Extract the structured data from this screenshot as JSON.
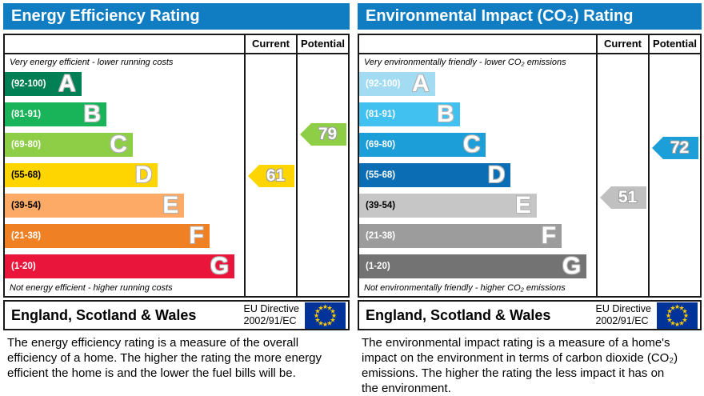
{
  "theme": {
    "header_bg": "#107dc3",
    "border": "#1a1a1a",
    "flag_bg": "#003399",
    "flag_star": "#ffcc00"
  },
  "panels": [
    {
      "title": "Energy Efficiency Rating",
      "columns": {
        "current": "Current",
        "potential": "Potential"
      },
      "top_note": "Very energy efficient - lower running costs",
      "bottom_note": "Not energy efficient - higher running costs",
      "bands": [
        {
          "letter": "A",
          "range": "(92-100)",
          "color": "#008054",
          "label_color": "#ffffff",
          "width_pct": 32
        },
        {
          "letter": "B",
          "range": "(81-91)",
          "color": "#19b459",
          "label_color": "#ffffff",
          "width_pct": 42.5
        },
        {
          "letter": "C",
          "range": "(69-80)",
          "color": "#8dce46",
          "label_color": "#ffffff",
          "width_pct": 53.5
        },
        {
          "letter": "D",
          "range": "(55-68)",
          "color": "#ffd500",
          "label_color": "#000000",
          "width_pct": 64
        },
        {
          "letter": "E",
          "range": "(39-54)",
          "color": "#fcaa65",
          "label_color": "#000000",
          "width_pct": 75
        },
        {
          "letter": "F",
          "range": "(21-38)",
          "color": "#ef8023",
          "label_color": "#ffffff",
          "width_pct": 85.5
        },
        {
          "letter": "G",
          "range": "(1-20)",
          "color": "#e9153b",
          "label_color": "#ffffff",
          "width_pct": 96
        }
      ],
      "current": {
        "value": "61",
        "row": 3,
        "offset_y": 1,
        "color": "#ffd500"
      },
      "potential": {
        "value": "79",
        "row": 2,
        "offset_y": -13,
        "color": "#8dce46"
      },
      "footer": {
        "region": "England, Scotland & Wales",
        "directive_line1": "EU Directive",
        "directive_line2": "2002/91/EC"
      },
      "description": "The energy efficiency rating is a measure of the overall efficiency of a home. The higher the rating the more energy efficient the home is and the lower the fuel bills will be."
    },
    {
      "title": "Environmental Impact (CO₂) Rating",
      "columns": {
        "current": "Current",
        "potential": "Potential"
      },
      "top_note": "Very environmentally friendly - lower CO₂ emissions",
      "bottom_note": "Not environmentally friendly - higher CO₂ emissions",
      "bands": [
        {
          "letter": "A",
          "range": "(92-100)",
          "color": "#a3dbf3",
          "label_color": "#ffffff",
          "width_pct": 32
        },
        {
          "letter": "B",
          "range": "(81-91)",
          "color": "#40c1f0",
          "label_color": "#ffffff",
          "width_pct": 42.5
        },
        {
          "letter": "C",
          "range": "(69-80)",
          "color": "#1c9ed8",
          "label_color": "#ffffff",
          "width_pct": 53.5
        },
        {
          "letter": "D",
          "range": "(55-68)",
          "color": "#0b6eb5",
          "label_color": "#ffffff",
          "width_pct": 64
        },
        {
          "letter": "E",
          "range": "(39-54)",
          "color": "#c6c6c6",
          "label_color": "#000000",
          "width_pct": 75
        },
        {
          "letter": "F",
          "range": "(21-38)",
          "color": "#9c9c9c",
          "label_color": "#ffffff",
          "width_pct": 85.5
        },
        {
          "letter": "G",
          "range": "(1-20)",
          "color": "#737373",
          "label_color": "#ffffff",
          "width_pct": 96
        }
      ],
      "current": {
        "value": "51",
        "row": 4,
        "offset_y": -10,
        "color": "#c0c0c0"
      },
      "potential": {
        "value": "72",
        "row": 2,
        "offset_y": 4,
        "color": "#1c9ed8"
      },
      "footer": {
        "region": "England, Scotland & Wales",
        "directive_line1": "EU Directive",
        "directive_line2": "2002/91/EC"
      },
      "description": "The environmental impact rating is a measure of a home's impact on the environment in terms of carbon dioxide (CO₂) emissions. The higher the rating the less impact it has on the environment."
    }
  ],
  "chart_data": [
    {
      "type": "bar",
      "title": "Energy Efficiency Rating",
      "categories": [
        "A (92-100)",
        "B (81-91)",
        "C (69-80)",
        "D (55-68)",
        "E (39-54)",
        "F (21-38)",
        "G (1-20)"
      ],
      "series": [
        {
          "name": "Current",
          "value": 61,
          "band": "D"
        },
        {
          "name": "Potential",
          "value": 79,
          "band": "C"
        }
      ],
      "scale": [
        1,
        100
      ],
      "annotations": [
        "Very energy efficient - lower running costs",
        "Not energy efficient - higher running costs"
      ]
    },
    {
      "type": "bar",
      "title": "Environmental Impact (CO₂) Rating",
      "categories": [
        "A (92-100)",
        "B (81-91)",
        "C (69-80)",
        "D (55-68)",
        "E (39-54)",
        "F (21-38)",
        "G (1-20)"
      ],
      "series": [
        {
          "name": "Current",
          "value": 51,
          "band": "E"
        },
        {
          "name": "Potential",
          "value": 72,
          "band": "C"
        }
      ],
      "scale": [
        1,
        100
      ],
      "annotations": [
        "Very environmentally friendly - lower CO₂ emissions",
        "Not environmentally friendly - higher CO₂ emissions"
      ]
    }
  ]
}
